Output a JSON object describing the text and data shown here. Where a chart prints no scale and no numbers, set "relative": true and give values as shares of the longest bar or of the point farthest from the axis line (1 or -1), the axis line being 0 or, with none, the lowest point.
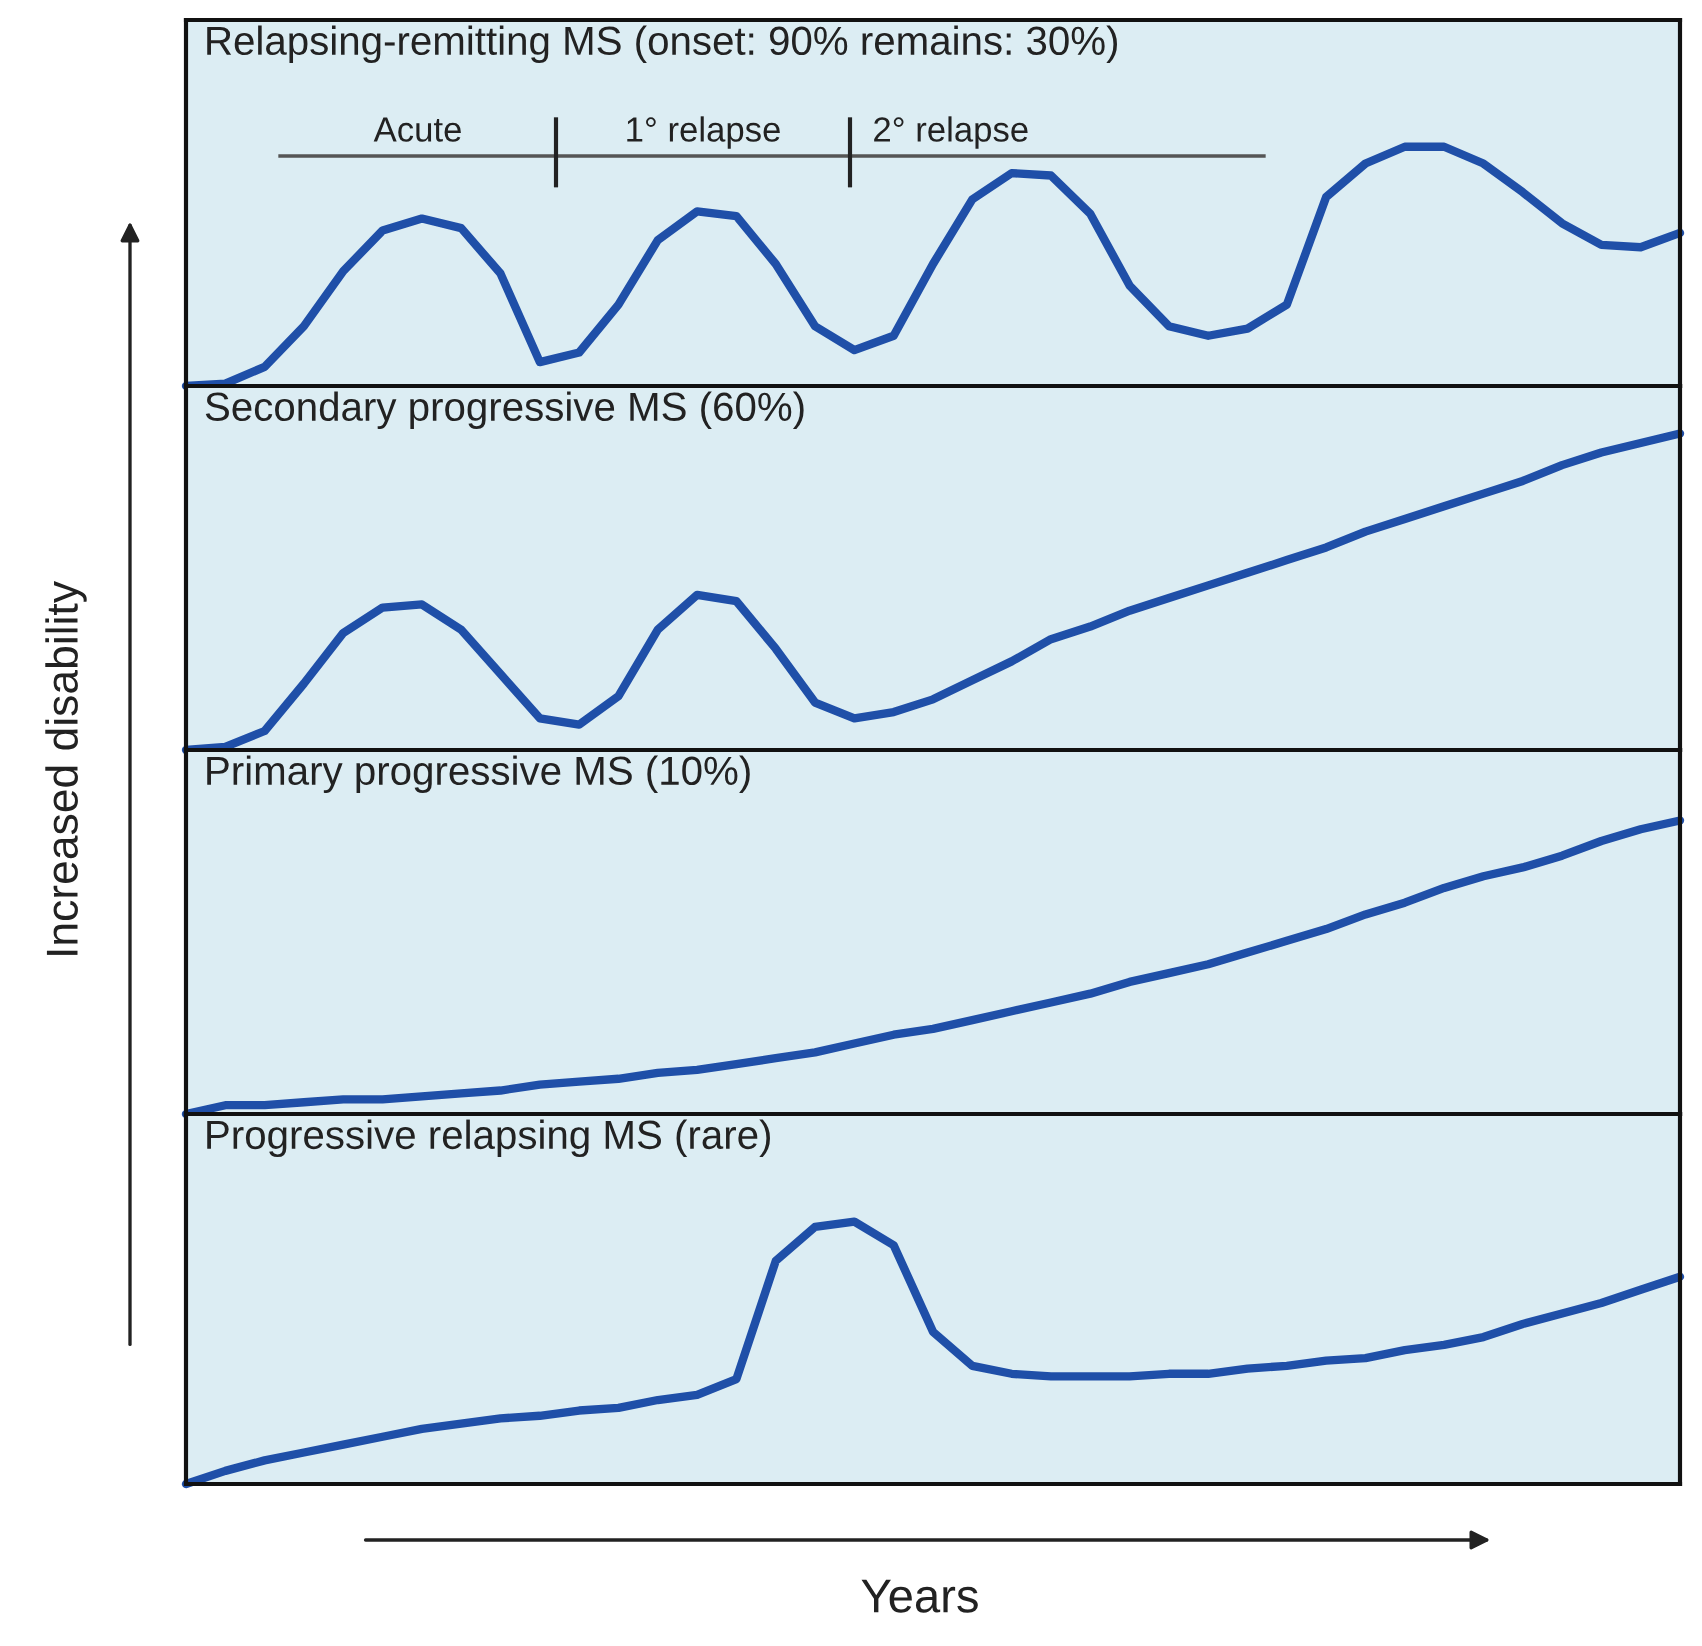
{
  "chart_data": [
    {
      "type": "line",
      "relative": true,
      "title": "Relapsing-remitting MS (onset: 90% remains: 30%)",
      "ylabel": "Increased disability",
      "annotations": [
        "Acute",
        "1° relapse",
        "2° relapse"
      ],
      "categories": [
        null,
        null,
        null,
        null,
        null,
        null,
        null,
        null,
        null,
        null,
        null,
        null,
        null,
        null,
        null,
        null,
        null,
        null,
        null,
        null,
        null,
        null,
        null,
        null,
        null,
        null,
        null,
        null,
        null,
        null,
        null,
        null,
        null,
        null,
        null,
        null,
        null,
        null,
        null
      ],
      "series": [
        {
          "color": "#1f4fa8",
          "values": [
            0,
            0.01,
            0.08,
            0.25,
            0.48,
            0.65,
            0.7,
            0.66,
            0.47,
            0.1,
            0.14,
            0.34,
            0.61,
            0.73,
            0.71,
            0.51,
            0.25,
            0.15,
            0.21,
            0.51,
            0.78,
            0.89,
            0.88,
            0.72,
            0.42,
            0.25,
            0.21,
            0.24,
            0.34,
            0.79,
            0.93,
            1,
            1,
            0.93,
            0.81,
            0.68,
            0.59,
            0.58,
            0.64
          ]
        }
      ]
    },
    {
      "type": "line",
      "relative": true,
      "title": "Secondary progressive MS (60%)",
      "categories": [
        null,
        null,
        null,
        null,
        null,
        null,
        null,
        null,
        null,
        null,
        null,
        null,
        null,
        null,
        null,
        null,
        null,
        null,
        null,
        null,
        null,
        null,
        null,
        null,
        null,
        null,
        null,
        null,
        null,
        null,
        null,
        null,
        null,
        null,
        null,
        null,
        null,
        null,
        null
      ],
      "series": [
        {
          "color": "#1f4fa8",
          "values": [
            0,
            0.01,
            0.06,
            0.21,
            0.37,
            0.45,
            0.46,
            0.38,
            0.24,
            0.1,
            0.08,
            0.17,
            0.38,
            0.49,
            0.47,
            0.32,
            0.15,
            0.1,
            0.12,
            0.16,
            0.22,
            0.28,
            0.35,
            0.39,
            0.44,
            0.48,
            0.52,
            0.56,
            0.6,
            0.64,
            0.69,
            0.73,
            0.77,
            0.81,
            0.85,
            0.9,
            0.94,
            0.97,
            1
          ]
        }
      ]
    },
    {
      "type": "line",
      "relative": true,
      "title": "Primary progressive MS (10%)",
      "categories": [
        null,
        null,
        null,
        null,
        null,
        null,
        null,
        null,
        null,
        null,
        null,
        null,
        null,
        null,
        null,
        null,
        null,
        null,
        null,
        null,
        null,
        null,
        null,
        null,
        null,
        null,
        null,
        null,
        null,
        null,
        null,
        null,
        null,
        null,
        null,
        null,
        null,
        null,
        null
      ],
      "series": [
        {
          "color": "#1f4fa8",
          "values": [
            0,
            0.03,
            0.03,
            0.04,
            0.05,
            0.05,
            0.06,
            0.07,
            0.08,
            0.1,
            0.11,
            0.12,
            0.14,
            0.15,
            0.17,
            0.19,
            0.21,
            0.24,
            0.27,
            0.29,
            0.32,
            0.35,
            0.38,
            0.41,
            0.45,
            0.48,
            0.51,
            0.55,
            0.59,
            0.63,
            0.68,
            0.72,
            0.77,
            0.81,
            0.84,
            0.88,
            0.93,
            0.97,
            1
          ]
        }
      ]
    },
    {
      "type": "line",
      "relative": true,
      "title": "Progressive relapsing MS (rare)",
      "xlabel": "Years",
      "categories": [
        null,
        null,
        null,
        null,
        null,
        null,
        null,
        null,
        null,
        null,
        null,
        null,
        null,
        null,
        null,
        null,
        null,
        null,
        null,
        null,
        null,
        null,
        null,
        null,
        null,
        null,
        null,
        null,
        null,
        null,
        null,
        null,
        null,
        null,
        null,
        null,
        null,
        null,
        null
      ],
      "series": [
        {
          "color": "#1f4fa8",
          "values": [
            0,
            0.05,
            0.09,
            0.12,
            0.15,
            0.18,
            0.21,
            0.23,
            0.25,
            0.26,
            0.28,
            0.29,
            0.32,
            0.34,
            0.4,
            0.85,
            0.98,
            1,
            0.91,
            0.58,
            0.45,
            0.42,
            0.41,
            0.41,
            0.41,
            0.42,
            0.42,
            0.44,
            0.45,
            0.47,
            0.48,
            0.51,
            0.53,
            0.56,
            0.61,
            0.65,
            0.69,
            0.74,
            0.79
          ]
        }
      ]
    }
  ]
}
